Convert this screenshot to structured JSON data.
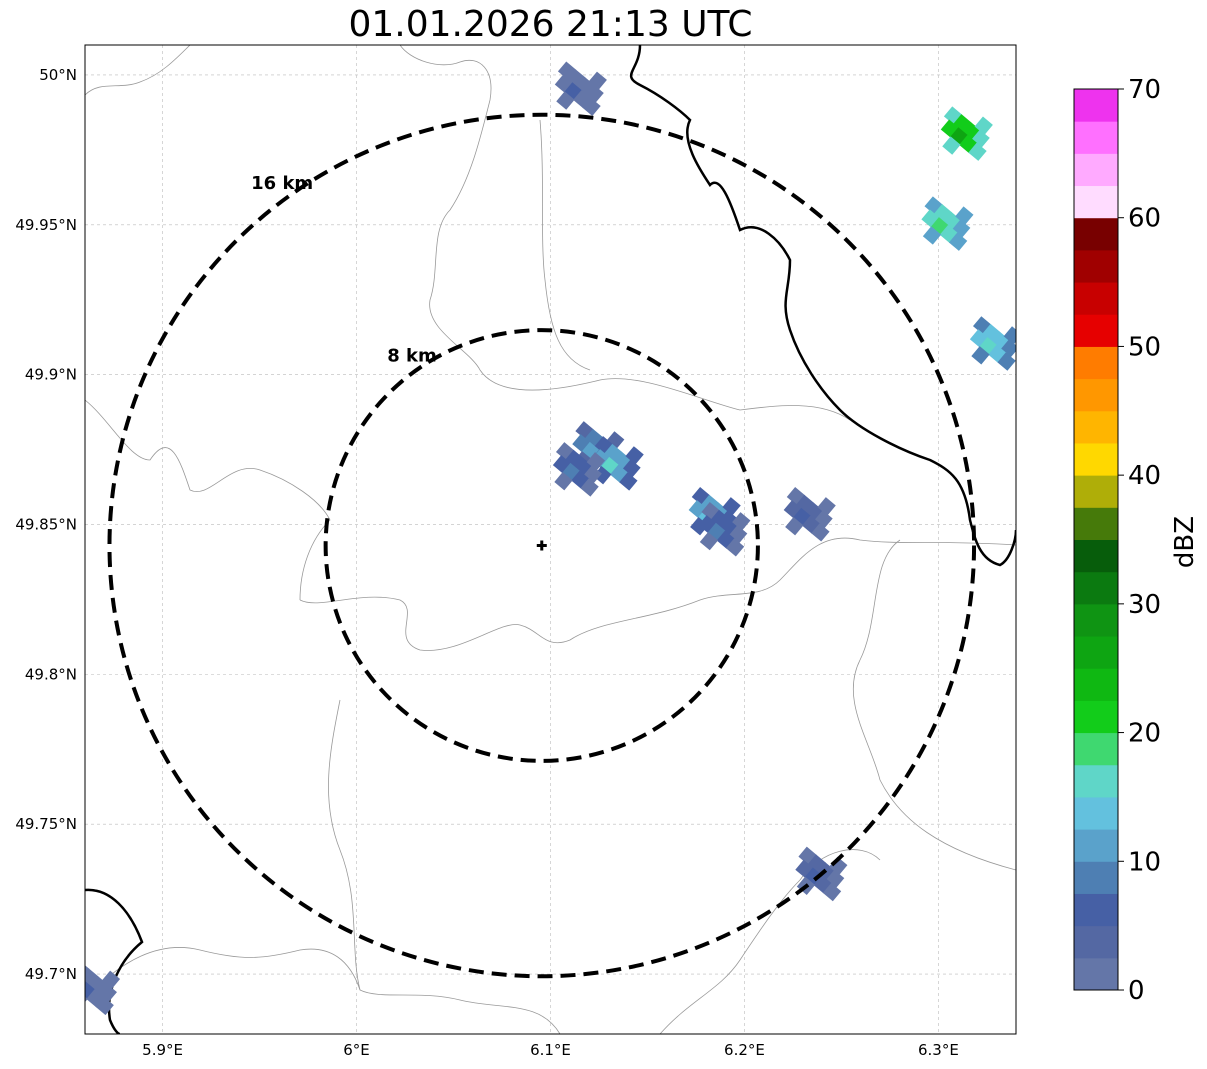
{
  "title": "01.01.2026 21:13 UTC",
  "map": {
    "lon_range": [
      5.86,
      6.34
    ],
    "lat_range": [
      49.68,
      50.01
    ],
    "radar_lon": 6.0955,
    "radar_lat": 49.843,
    "rings": [
      {
        "label": "8 km",
        "radius_km": 8
      },
      {
        "label": "16 km",
        "radius_km": 16
      }
    ],
    "lon_ticks": [
      {
        "value": 5.9,
        "label": "5.9°E"
      },
      {
        "value": 6.0,
        "label": "6°E"
      },
      {
        "value": 6.1,
        "label": "6.1°E"
      },
      {
        "value": 6.2,
        "label": "6.2°E"
      },
      {
        "value": 6.3,
        "label": "6.3°E"
      }
    ],
    "lat_ticks": [
      {
        "value": 50.0,
        "label": "50°N"
      },
      {
        "value": 49.95,
        "label": "49.95°N"
      },
      {
        "value": 49.9,
        "label": "49.9°N"
      },
      {
        "value": 49.85,
        "label": "49.85°N"
      },
      {
        "value": 49.8,
        "label": "49.8°N"
      },
      {
        "value": 49.75,
        "label": "49.75°N"
      },
      {
        "value": 49.7,
        "label": "49.7°N"
      }
    ],
    "echoes": [
      {
        "name": "core-main",
        "lon": 6.125,
        "lat": 49.875,
        "dbz": 8
      },
      {
        "name": "core-main-2",
        "lon": 6.135,
        "lat": 49.87,
        "dbz": 12
      },
      {
        "name": "core-main-3",
        "lon": 6.115,
        "lat": 49.868,
        "dbz": 5
      },
      {
        "name": "tail-se",
        "lon": 6.185,
        "lat": 49.853,
        "dbz": 10
      },
      {
        "name": "tail-se-2",
        "lon": 6.19,
        "lat": 49.848,
        "dbz": 6
      },
      {
        "name": "east-cell",
        "lon": 6.234,
        "lat": 49.853,
        "dbz": 4
      },
      {
        "name": "south-cell",
        "lon": 6.24,
        "lat": 49.733,
        "dbz": 3
      },
      {
        "name": "north-cell",
        "lon": 6.116,
        "lat": 49.995,
        "dbz": 2
      },
      {
        "name": "ne-band-1",
        "lon": 6.315,
        "lat": 49.98,
        "dbz": 22
      },
      {
        "name": "ne-band-2",
        "lon": 6.305,
        "lat": 49.95,
        "dbz": 16
      },
      {
        "name": "ne-band-3",
        "lon": 6.33,
        "lat": 49.91,
        "dbz": 14
      },
      {
        "name": "west-edge",
        "lon": 5.865,
        "lat": 49.695,
        "dbz": 2
      }
    ],
    "colorbar": {
      "unit": "dBZ",
      "min": 0,
      "max": 70,
      "step": 2.5,
      "tick_values": [
        0,
        10,
        20,
        30,
        40,
        50,
        60,
        70
      ],
      "tick_labels": [
        "0",
        "10",
        "20",
        "30",
        "40",
        "50",
        "60",
        "70"
      ],
      "colors": [
        "#6476a8",
        "#5468a3",
        "#4660a5",
        "#4e7fb3",
        "#5aa2cb",
        "#63c1de",
        "#5fd6c8",
        "#3fd870",
        "#12cc1a",
        "#0fb812",
        "#0ea512",
        "#0f9413",
        "#0b7a10",
        "#075d0b",
        "#467a0a",
        "#afae08",
        "#ffd800",
        "#ffb500",
        "#ff9700",
        "#ff7c00",
        "#e60000",
        "#c80000",
        "#a00000",
        "#780000",
        "#ffdcff",
        "#ffaaff",
        "#ff70ff",
        "#ee33ee"
      ]
    }
  }
}
